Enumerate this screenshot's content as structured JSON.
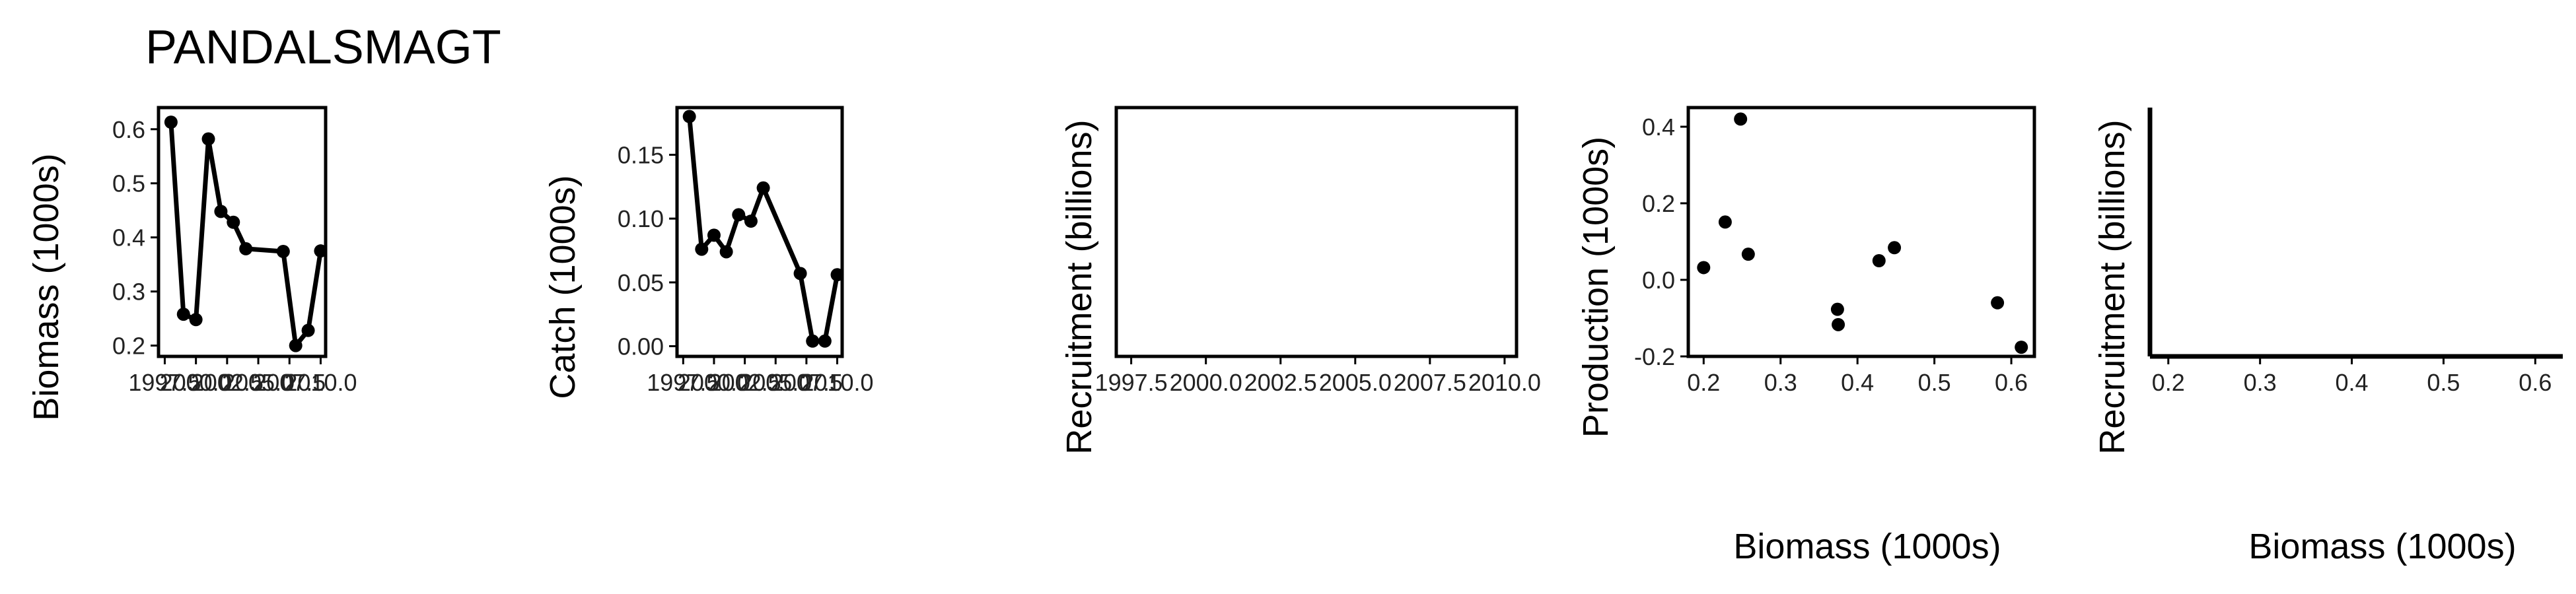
{
  "title": "PANDALSMAGT",
  "chart_data": [
    {
      "type": "line",
      "ylabel": "Biomass (1000s)",
      "xlabel": "",
      "frame": "box",
      "xlim": [
        1997.0,
        2010.4
      ],
      "ylim": [
        0.18,
        0.64
      ],
      "xticks": [
        1997.5,
        2000.0,
        2002.5,
        2005.0,
        2007.5,
        2010.0
      ],
      "xtick_labels": [
        "1997.5",
        "2000.0",
        "2002.5",
        "2005.0",
        "2007.5",
        "2010.0"
      ],
      "yticks": [
        0.2,
        0.3,
        0.4,
        0.5,
        0.6
      ],
      "ytick_labels": [
        "0.2",
        "0.3",
        "0.4",
        "0.5",
        "0.6"
      ],
      "x": [
        1998,
        1999,
        2000,
        2001,
        2002,
        2003,
        2004,
        2007,
        2008,
        2009,
        2010
      ],
      "y": [
        0.613,
        0.258,
        0.248,
        0.582,
        0.448,
        0.428,
        0.379,
        0.374,
        0.2,
        0.228,
        0.375
      ]
    },
    {
      "type": "line",
      "ylabel": "Catch (1000s)",
      "xlabel": "",
      "frame": "box",
      "xlim": [
        1997.0,
        2010.4
      ],
      "ylim": [
        -0.008,
        0.187
      ],
      "xticks": [
        1997.5,
        2000.0,
        2002.5,
        2005.0,
        2007.5,
        2010.0
      ],
      "xtick_labels": [
        "1997.5",
        "2000.0",
        "2002.5",
        "2005.0",
        "2007.5",
        "2010.0"
      ],
      "yticks": [
        0.0,
        0.05,
        0.1,
        0.15
      ],
      "ytick_labels": [
        "0.00",
        "0.05",
        "0.10",
        "0.15"
      ],
      "x": [
        1998,
        1999,
        2000,
        2001,
        2002,
        2003,
        2004,
        2007,
        2008,
        2009,
        2010
      ],
      "y": [
        0.18,
        0.076,
        0.087,
        0.074,
        0.103,
        0.098,
        0.124,
        0.057,
        0.004,
        0.004,
        0.056
      ]
    },
    {
      "type": "line",
      "ylabel": "Recruitment (billions)",
      "xlabel": "",
      "frame": "box",
      "xlim": [
        1997.0,
        2010.4
      ],
      "ylim": [
        0,
        1
      ],
      "xticks": [
        1997.5,
        2000.0,
        2002.5,
        2005.0,
        2007.5,
        2010.0
      ],
      "xtick_labels": [
        "1997.5",
        "2000.0",
        "2002.5",
        "2005.0",
        "2007.5",
        "2010.0"
      ],
      "yticks": [],
      "ytick_labels": [],
      "x": [],
      "y": []
    },
    {
      "type": "scatter",
      "ylabel": "Production (1000s)",
      "xlabel": "Biomass (1000s)",
      "frame": "box",
      "xlim": [
        0.18,
        0.63
      ],
      "ylim": [
        -0.2,
        0.45
      ],
      "xticks": [
        0.2,
        0.3,
        0.4,
        0.5,
        0.6
      ],
      "xtick_labels": [
        "0.2",
        "0.3",
        "0.4",
        "0.5",
        "0.6"
      ],
      "yticks": [
        -0.2,
        0.0,
        0.2,
        0.4
      ],
      "ytick_labels": [
        "-0.2",
        "0.0",
        "0.2",
        "0.4"
      ],
      "x": [
        0.2,
        0.228,
        0.248,
        0.258,
        0.374,
        0.375,
        0.428,
        0.448,
        0.582,
        0.613
      ],
      "y": [
        0.032,
        0.151,
        0.42,
        0.067,
        -0.077,
        -0.117,
        0.05,
        0.084,
        -0.06,
        -0.176
      ]
    },
    {
      "type": "scatter",
      "ylabel": "Recruitment (billions)",
      "xlabel": "Biomass (1000s)",
      "frame": "axes",
      "xlim": [
        0.18,
        0.63
      ],
      "ylim": [
        0,
        1
      ],
      "xticks": [
        0.2,
        0.3,
        0.4,
        0.5,
        0.6
      ],
      "xtick_labels": [
        "0.2",
        "0.3",
        "0.4",
        "0.5",
        "0.6"
      ],
      "yticks": [],
      "ytick_labels": [],
      "x": [],
      "y": []
    }
  ]
}
